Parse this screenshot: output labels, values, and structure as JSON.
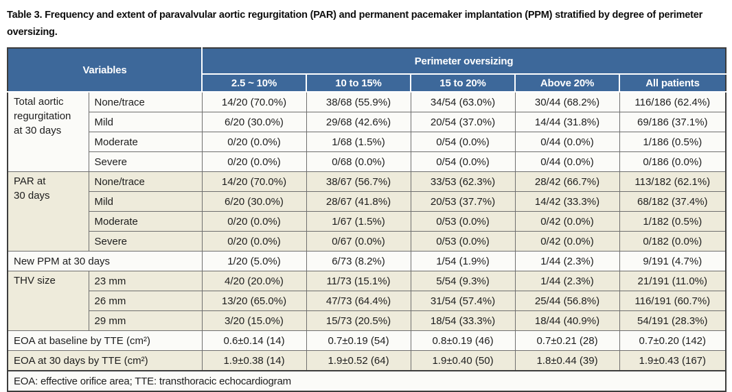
{
  "title": "Table 3. Frequency and extent of paravalvular aortic regurgitation (PAR) and permanent pacemaker implantation (PPM) stratified by degree of perimeter oversizing.",
  "header": {
    "variables_label": "Variables",
    "banner_label": "Perimeter oversizing",
    "columns": [
      "2.5 ~ 10%",
      "10 to 15%",
      "15 to 20%",
      "Above 20%",
      "All patients"
    ]
  },
  "rows": [
    {
      "group": "Total aortic\nregurgitation\nat 30 days",
      "sub": "None/trace",
      "v": [
        "14/20 (70.0%)",
        "38/68 (55.9%)",
        "34/54 (63.0%)",
        "30/44 (68.2%)",
        "116/186 (62.4%)"
      ]
    },
    {
      "sub": "Mild",
      "v": [
        "6/20 (30.0%)",
        "29/68 (42.6%)",
        "20/54 (37.0%)",
        "14/44 (31.8%)",
        "69/186 (37.1%)"
      ]
    },
    {
      "sub": "Moderate",
      "v": [
        "0/20 (0.0%)",
        "1/68 (1.5%)",
        "0/54 (0.0%)",
        "0/44 (0.0%)",
        "1/186 (0.5%)"
      ]
    },
    {
      "sub": "Severe",
      "v": [
        "0/20 (0.0%)",
        "0/68 (0.0%)",
        "0/54 (0.0%)",
        "0/44 (0.0%)",
        "0/186 (0.0%)"
      ]
    },
    {
      "group": "PAR at\n30 days",
      "sub": "None/trace",
      "v": [
        "14/20 (70.0%)",
        "38/67 (56.7%)",
        "33/53 (62.3%)",
        "28/42 (66.7%)",
        "113/182 (62.1%)"
      ]
    },
    {
      "sub": "Mild",
      "v": [
        "6/20 (30.0%)",
        "28/67 (41.8%)",
        "20/53 (37.7%)",
        "14/42 (33.3%)",
        "68/182 (37.4%)"
      ]
    },
    {
      "sub": "Moderate",
      "v": [
        "0/20 (0.0%)",
        "1/67 (1.5%)",
        "0/53 (0.0%)",
        "0/42 (0.0%)",
        "1/182 (0.5%)"
      ]
    },
    {
      "sub": "Severe",
      "v": [
        "0/20 (0.0%)",
        "0/67 (0.0%)",
        "0/53 (0.0%)",
        "0/42 (0.0%)",
        "0/182 (0.0%)"
      ]
    },
    {
      "label": "New PPM at 30 days",
      "v": [
        "1/20 (5.0%)",
        "6/73 (8.2%)",
        "1/54 (1.9%)",
        "1/44 (2.3%)",
        "9/191 (4.7%)"
      ]
    },
    {
      "group": "THV size",
      "sub": "23 mm",
      "v": [
        "4/20 (20.0%)",
        "11/73 (15.1%)",
        "5/54 (9.3%)",
        "1/44 (2.3%)",
        "21/191 (11.0%)"
      ]
    },
    {
      "sub": "26 mm",
      "v": [
        "13/20 (65.0%)",
        "47/73 (64.4%)",
        "31/54 (57.4%)",
        "25/44 (56.8%)",
        "116/191 (60.7%)"
      ]
    },
    {
      "sub": "29 mm",
      "v": [
        "3/20 (15.0%)",
        "15/73 (20.5%)",
        "18/54 (33.3%)",
        "18/44 (40.9%)",
        "54/191 (28.3%)"
      ]
    },
    {
      "label": "EOA at baseline by TTE (cm²)",
      "v": [
        "0.6±0.14 (14)",
        "0.7±0.19 (54)",
        "0.8±0.19 (46)",
        "0.7±0.21 (28)",
        "0.7±0.20 (142)"
      ]
    },
    {
      "label": "EOA at 30 days by TTE (cm²)",
      "v": [
        "1.9±0.38 (14)",
        "1.9±0.52 (64)",
        "1.9±0.40 (50)",
        "1.8±0.44 (39)",
        "1.9±0.43 (167)"
      ]
    }
  ],
  "footnote": "EOA: effective orifice area; TTE: transthoracic echocardiogram",
  "colors": {
    "header_background": "#3d689a",
    "header_text": "#ffffff",
    "alt_row_background": "#eeebdb",
    "row_background": "#fbfbf8",
    "border": "#3c3c3c"
  }
}
